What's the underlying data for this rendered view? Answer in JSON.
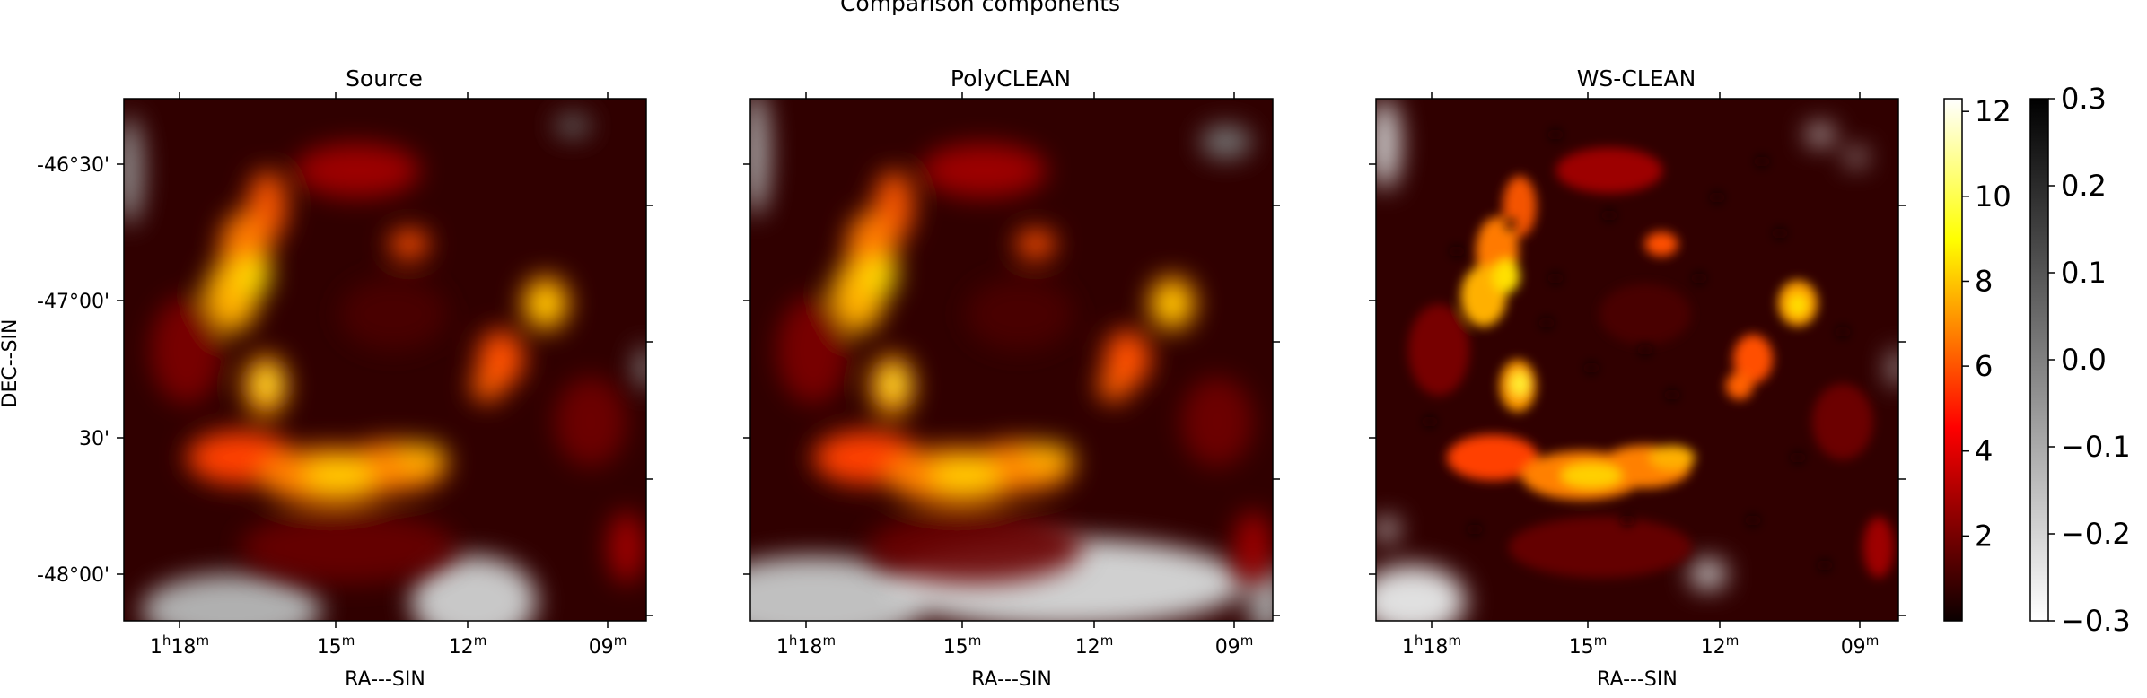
{
  "figure": {
    "suptitle": "Comparison components"
  },
  "panels": [
    {
      "title": "Source",
      "xlabel": "RA---SIN",
      "ylabel": "DEC--SIN",
      "show_y_ticklabels": true
    },
    {
      "title": "PolyCLEAN",
      "xlabel": "RA---SIN",
      "ylabel": "",
      "show_y_ticklabels": false
    },
    {
      "title": "WS-CLEAN",
      "xlabel": "RA---SIN",
      "ylabel": "",
      "show_y_ticklabels": false
    }
  ],
  "ra_ticks": [
    {
      "h": "1",
      "m": "18",
      "label_hour": true
    },
    {
      "h": "",
      "m": "15",
      "label_hour": false
    },
    {
      "h": "",
      "m": "12",
      "label_hour": false
    },
    {
      "h": "",
      "m": "09",
      "label_hour": false
    }
  ],
  "dec_ticks": [
    "-46°30'",
    "-47°00'",
    "30'",
    "-48°00'"
  ],
  "colorbars": [
    {
      "name": "positive-hot",
      "cmap": "hot",
      "range": [
        0,
        12.3
      ],
      "ticks": [
        "2",
        "4",
        "6",
        "8",
        "10",
        "12"
      ],
      "tick_values": [
        2,
        4,
        6,
        8,
        10,
        12
      ]
    },
    {
      "name": "negative-gray",
      "cmap": "gray_r",
      "range": [
        -0.3,
        0.3
      ],
      "ticks": [
        "0.3",
        "0.2",
        "0.1",
        "0.0",
        "−0.1",
        "−0.2",
        "−0.3"
      ],
      "tick_values": [
        0.3,
        0.2,
        0.1,
        0.0,
        -0.1,
        -0.2,
        -0.3
      ]
    }
  ],
  "chart_data": {
    "type": "heatmap",
    "title": "Comparison components",
    "panels": [
      "Source",
      "PolyCLEAN",
      "WS-CLEAN"
    ],
    "xlabel": "RA---SIN",
    "ylabel": "DEC--SIN",
    "x_ticks": [
      "1h18m",
      "15m",
      "12m",
      "09m"
    ],
    "y_ticks": [
      "-46°30'",
      "-47°00'",
      "30'",
      "-48°00'"
    ],
    "positive_scale": {
      "cmap": "hot",
      "min": 0,
      "max": 12.3
    },
    "negative_scale": {
      "cmap": "gray_r",
      "min": -0.3,
      "max": 0.3
    },
    "emission_peaks_approx": [
      {
        "region": "upper-left arm",
        "value": 9
      },
      {
        "region": "center-left knot",
        "value": 9
      },
      {
        "region": "right arm",
        "value": 8
      },
      {
        "region": "lower arc",
        "value": 9
      },
      {
        "region": "small upper-center knot",
        "value": 6
      }
    ],
    "grid": false,
    "legend": "none"
  }
}
